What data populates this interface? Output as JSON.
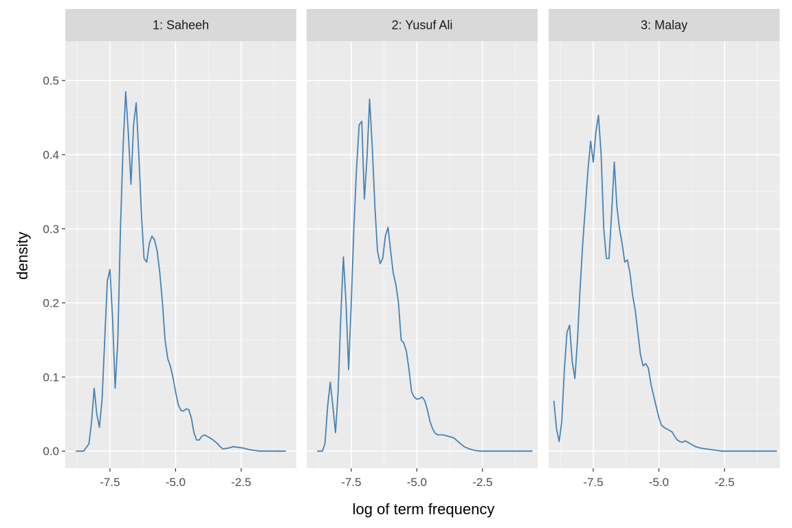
{
  "chart_data": {
    "type": "line",
    "xlabel": "log of term frequency",
    "ylabel": "density",
    "xlim": [
      -9.2,
      -0.4
    ],
    "ylim": [
      -0.023,
      0.553
    ],
    "x_ticks": [
      -7.5,
      -5.0,
      -2.5
    ],
    "x_tick_labels": [
      "-7.5",
      "-5.0",
      "-2.5"
    ],
    "y_ticks": [
      0.0,
      0.1,
      0.2,
      0.3,
      0.4,
      0.5
    ],
    "y_tick_labels": [
      "0.0",
      "0.1",
      "0.2",
      "0.3",
      "0.4",
      "0.5"
    ],
    "grid": true,
    "line_color": "#4682b4",
    "panel_background": "#ebebeb",
    "strip_background": "#d9d9d9",
    "panels": [
      {
        "label": "1: Saheeh",
        "x": [
          -8.8,
          -8.5,
          -8.3,
          -8.2,
          -8.1,
          -8.0,
          -7.9,
          -7.8,
          -7.7,
          -7.6,
          -7.5,
          -7.4,
          -7.3,
          -7.2,
          -7.1,
          -7.0,
          -6.9,
          -6.8,
          -6.7,
          -6.6,
          -6.5,
          -6.4,
          -6.3,
          -6.2,
          -6.1,
          -6.0,
          -5.9,
          -5.8,
          -5.7,
          -5.6,
          -5.5,
          -5.4,
          -5.3,
          -5.2,
          -5.1,
          -5.0,
          -4.9,
          -4.8,
          -4.7,
          -4.6,
          -4.5,
          -4.4,
          -4.3,
          -4.2,
          -4.1,
          -4.0,
          -3.9,
          -3.8,
          -3.7,
          -3.6,
          -3.5,
          -3.4,
          -3.3,
          -3.2,
          -3.0,
          -2.8,
          -2.6,
          -2.4,
          -2.2,
          -2.0,
          -1.8,
          -1.6,
          -1.2,
          -0.8
        ],
        "y": [
          0.0,
          0.0,
          0.01,
          0.04,
          0.085,
          0.05,
          0.032,
          0.07,
          0.15,
          0.23,
          0.245,
          0.18,
          0.085,
          0.15,
          0.3,
          0.41,
          0.485,
          0.43,
          0.36,
          0.44,
          0.47,
          0.4,
          0.32,
          0.26,
          0.255,
          0.28,
          0.29,
          0.285,
          0.27,
          0.24,
          0.2,
          0.15,
          0.125,
          0.115,
          0.1,
          0.08,
          0.063,
          0.055,
          0.054,
          0.057,
          0.056,
          0.045,
          0.025,
          0.015,
          0.015,
          0.02,
          0.022,
          0.02,
          0.018,
          0.016,
          0.013,
          0.01,
          0.006,
          0.003,
          0.004,
          0.006,
          0.005,
          0.004,
          0.002,
          0.001,
          0.0,
          0.0,
          0.0,
          0.0
        ]
      },
      {
        "label": "2: Yusuf Ali",
        "x": [
          -8.8,
          -8.6,
          -8.5,
          -8.4,
          -8.3,
          -8.2,
          -8.1,
          -8.0,
          -7.9,
          -7.8,
          -7.7,
          -7.6,
          -7.5,
          -7.4,
          -7.3,
          -7.2,
          -7.1,
          -7.0,
          -6.9,
          -6.8,
          -6.7,
          -6.6,
          -6.5,
          -6.4,
          -6.3,
          -6.2,
          -6.1,
          -6.0,
          -5.9,
          -5.8,
          -5.7,
          -5.6,
          -5.5,
          -5.4,
          -5.3,
          -5.2,
          -5.1,
          -5.0,
          -4.9,
          -4.8,
          -4.7,
          -4.6,
          -4.5,
          -4.4,
          -4.3,
          -4.2,
          -4.1,
          -4.0,
          -3.9,
          -3.8,
          -3.6,
          -3.4,
          -3.2,
          -3.0,
          -2.8,
          -2.6,
          -2.4,
          -2.2,
          -2.0,
          -1.8,
          -1.4,
          -1.0,
          -0.6
        ],
        "y": [
          0.0,
          0.0,
          0.01,
          0.06,
          0.093,
          0.06,
          0.025,
          0.08,
          0.18,
          0.262,
          0.2,
          0.11,
          0.2,
          0.3,
          0.38,
          0.44,
          0.445,
          0.34,
          0.395,
          0.475,
          0.41,
          0.33,
          0.27,
          0.253,
          0.26,
          0.29,
          0.302,
          0.27,
          0.24,
          0.225,
          0.2,
          0.15,
          0.146,
          0.135,
          0.11,
          0.08,
          0.073,
          0.07,
          0.071,
          0.073,
          0.068,
          0.056,
          0.04,
          0.03,
          0.024,
          0.022,
          0.022,
          0.022,
          0.021,
          0.02,
          0.018,
          0.012,
          0.006,
          0.003,
          0.001,
          0.0,
          0.0,
          0.0,
          0.0,
          0.0,
          0.0,
          0.0,
          0.0
        ]
      },
      {
        "label": "3: Malay",
        "x": [
          -9.0,
          -8.9,
          -8.8,
          -8.7,
          -8.6,
          -8.5,
          -8.4,
          -8.3,
          -8.2,
          -8.1,
          -8.0,
          -7.9,
          -7.8,
          -7.7,
          -7.6,
          -7.5,
          -7.4,
          -7.3,
          -7.2,
          -7.1,
          -7.0,
          -6.9,
          -6.8,
          -6.7,
          -6.6,
          -6.5,
          -6.4,
          -6.3,
          -6.2,
          -6.1,
          -6.0,
          -5.9,
          -5.8,
          -5.7,
          -5.6,
          -5.5,
          -5.4,
          -5.3,
          -5.2,
          -5.1,
          -5.0,
          -4.9,
          -4.8,
          -4.7,
          -4.6,
          -4.5,
          -4.4,
          -4.3,
          -4.2,
          -4.1,
          -4.0,
          -3.9,
          -3.8,
          -3.7,
          -3.6,
          -3.5,
          -3.4,
          -3.2,
          -3.0,
          -2.8,
          -2.6,
          -2.4,
          -2.0,
          -1.5,
          -1.0,
          -0.5
        ],
        "y": [
          0.068,
          0.03,
          0.013,
          0.04,
          0.11,
          0.16,
          0.17,
          0.12,
          0.098,
          0.15,
          0.22,
          0.28,
          0.33,
          0.38,
          0.418,
          0.39,
          0.43,
          0.453,
          0.4,
          0.3,
          0.26,
          0.26,
          0.32,
          0.39,
          0.33,
          0.3,
          0.28,
          0.255,
          0.258,
          0.24,
          0.21,
          0.19,
          0.16,
          0.13,
          0.115,
          0.118,
          0.112,
          0.09,
          0.075,
          0.06,
          0.045,
          0.035,
          0.032,
          0.03,
          0.028,
          0.026,
          0.02,
          0.015,
          0.013,
          0.012,
          0.014,
          0.012,
          0.01,
          0.008,
          0.006,
          0.005,
          0.004,
          0.003,
          0.002,
          0.001,
          0.0,
          0.0,
          0.0,
          0.0,
          0.0,
          0.0
        ]
      }
    ]
  }
}
